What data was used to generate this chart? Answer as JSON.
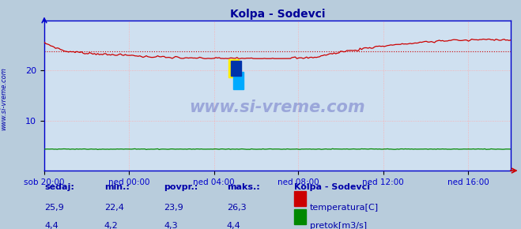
{
  "title": "Kolpa - Sodevci",
  "title_color": "#000099",
  "bg_color": "#cfe0f0",
  "outer_bg_color": "#b8ccdc",
  "grid_color": "#ffaaaa",
  "grid_style": ":",
  "x_labels": [
    "sob 20:00",
    "ned 00:00",
    "ned 04:00",
    "ned 08:00",
    "ned 12:00",
    "ned 16:00"
  ],
  "x_ticks_norm": [
    0.0,
    0.182,
    0.364,
    0.545,
    0.727,
    0.909
  ],
  "y_ticks": [
    10,
    20
  ],
  "ylim": [
    0,
    30
  ],
  "temp_avg": 23.9,
  "temp_min": 22.4,
  "temp_max": 26.3,
  "pretok_min": 4.2,
  "pretok_max": 4.4,
  "temp_color": "#cc0000",
  "pretok_color": "#008800",
  "avg_line_color": "#cc0000",
  "axis_color": "#0000cc",
  "watermark_text": "www.si-vreme.com",
  "watermark_color": "#000099",
  "sidebar_text": "www.si-vreme.com",
  "sidebar_color": "#0000aa",
  "legend_title": "Kolpa - Sodevci",
  "legend_items": [
    "temperatura[C]",
    "pretok[m3/s]"
  ],
  "legend_colors": [
    "#cc0000",
    "#008800"
  ],
  "footer_headers": [
    "sedaj:",
    "min.:",
    "povpr.:",
    "maks.:"
  ],
  "footer_row1": [
    "25,9",
    "22,4",
    "23,9",
    "26,3"
  ],
  "footer_row2": [
    "4,4",
    "4,2",
    "4,3",
    "4,4"
  ],
  "footer_color": "#0000aa"
}
